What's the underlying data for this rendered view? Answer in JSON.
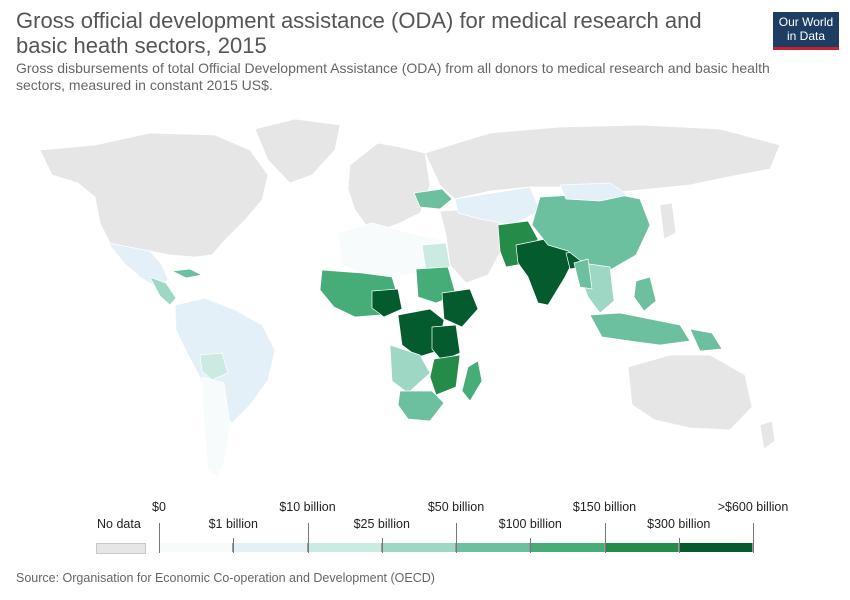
{
  "title": "Gross official development assistance (ODA) for medical research and basic heath sectors, 2015",
  "subtitle": "Gross disbursements of total Official Development Assistance (ODA) from all donors to medical research and basic health sectors, measured in constant 2015 US$.",
  "logo": {
    "line1": "Our World",
    "line2": "in Data"
  },
  "legend": {
    "nodata_label": "No data",
    "nodata_color": "#e6e6e6",
    "bins": [
      {
        "label": "$0",
        "color": "#f7fbfb"
      },
      {
        "label": "$1 billion",
        "color": "#e3f0f7"
      },
      {
        "label": "$10 billion",
        "color": "#cbeae1"
      },
      {
        "label": "$25 billion",
        "color": "#9ed7c4"
      },
      {
        "label": "$50 billion",
        "color": "#6cc0a0"
      },
      {
        "label": "$100 billion",
        "color": "#46ad79"
      },
      {
        "label": "$150 billion",
        "color": "#258b49"
      },
      {
        "label": "$300 billion",
        "color": "#045c2e"
      }
    ],
    "last_label": ">$600 billion"
  },
  "source": "Source: Organisation for Economic Co-operation and Development (OECD)",
  "regions": [
    {
      "name": "north-america",
      "color": "#e6e6e6"
    },
    {
      "name": "greenland",
      "color": "#e6e6e6"
    },
    {
      "name": "mexico",
      "color": "#e3f0f7"
    },
    {
      "name": "central-america",
      "color": "#9ed7c4"
    },
    {
      "name": "caribbean",
      "color": "#6cc0a0"
    },
    {
      "name": "south-america",
      "color": "#e3f0f7"
    },
    {
      "name": "bolivia",
      "color": "#cbeae1"
    },
    {
      "name": "southern-cone",
      "color": "#f7fbfb"
    },
    {
      "name": "europe",
      "color": "#e6e6e6"
    },
    {
      "name": "ukraine",
      "color": "#6cc0a0"
    },
    {
      "name": "russia",
      "color": "#e6e6e6"
    },
    {
      "name": "north-africa",
      "color": "#f7fbfb"
    },
    {
      "name": "egypt",
      "color": "#cbeae1"
    },
    {
      "name": "west-africa",
      "color": "#46ad79"
    },
    {
      "name": "nigeria",
      "color": "#045c2e"
    },
    {
      "name": "sudan",
      "color": "#46ad79"
    },
    {
      "name": "ethiopia",
      "color": "#045c2e"
    },
    {
      "name": "drc",
      "color": "#045c2e"
    },
    {
      "name": "tanzania-region",
      "color": "#045c2e"
    },
    {
      "name": "angola-zambia",
      "color": "#9ed7c4"
    },
    {
      "name": "mozambique-malawi",
      "color": "#258b49"
    },
    {
      "name": "southern-africa",
      "color": "#6cc0a0"
    },
    {
      "name": "madagascar",
      "color": "#46ad79"
    },
    {
      "name": "middle-east",
      "color": "#e6e6e6"
    },
    {
      "name": "central-asia",
      "color": "#e3f0f7"
    },
    {
      "name": "afghanistan-pakistan",
      "color": "#258b49"
    },
    {
      "name": "india",
      "color": "#045c2e"
    },
    {
      "name": "bangladesh",
      "color": "#045c2e"
    },
    {
      "name": "china",
      "color": "#6cc0a0"
    },
    {
      "name": "mongolia",
      "color": "#e3f0f7"
    },
    {
      "name": "southeast-asia",
      "color": "#9ed7c4"
    },
    {
      "name": "myanmar",
      "color": "#6cc0a0"
    },
    {
      "name": "philippines",
      "color": "#6cc0a0"
    },
    {
      "name": "indonesia",
      "color": "#6cc0a0"
    },
    {
      "name": "papua-new-guinea",
      "color": "#6cc0a0"
    },
    {
      "name": "australia",
      "color": "#e6e6e6"
    },
    {
      "name": "japan",
      "color": "#e6e6e6"
    },
    {
      "name": "new-zealand",
      "color": "#e6e6e6"
    }
  ]
}
